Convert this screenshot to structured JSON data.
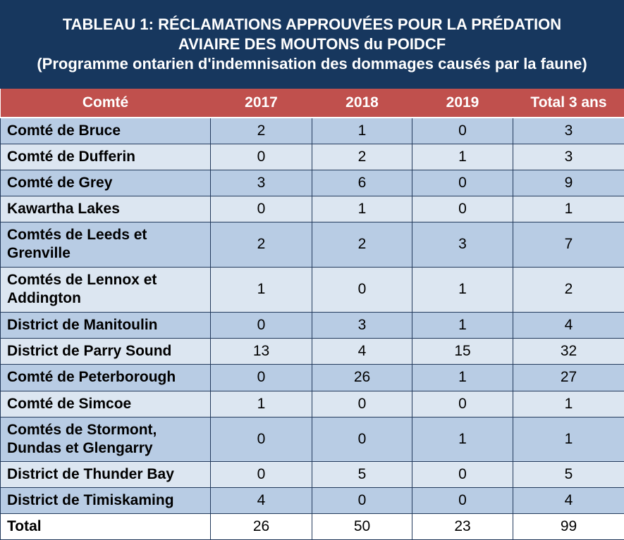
{
  "title": {
    "line1": "TABLEAU 1: RÉCLAMATIONS APPROUVÉES POUR LA PRÉDATION",
    "line2": "AVIAIRE DES MOUTONS du POIDCF",
    "line3": "(Programme ontarien d'indemnisation des dommages causés par la faune)"
  },
  "headers": [
    "Comté",
    "2017",
    "2018",
    "2019",
    "Total 3 ans"
  ],
  "rows": [
    {
      "name": "Comté de Bruce",
      "v2017": "2",
      "v2018": "1",
      "v2019": "0",
      "total": "3"
    },
    {
      "name": "Comté de Dufferin",
      "v2017": "0",
      "v2018": "2",
      "v2019": "1",
      "total": "3"
    },
    {
      "name": "Comté de Grey",
      "v2017": "3",
      "v2018": "6",
      "v2019": "0",
      "total": "9"
    },
    {
      "name": "Kawartha Lakes",
      "v2017": "0",
      "v2018": "1",
      "v2019": "0",
      "total": "1"
    },
    {
      "name": "Comtés de Leeds et Grenville",
      "v2017": "2",
      "v2018": "2",
      "v2019": "3",
      "total": "7"
    },
    {
      "name": "Comtés de Lennox et Addington",
      "v2017": "1",
      "v2018": "0",
      "v2019": "1",
      "total": "2"
    },
    {
      "name": "District de Manitoulin",
      "v2017": "0",
      "v2018": "3",
      "v2019": "1",
      "total": "4"
    },
    {
      "name": "District de Parry Sound",
      "v2017": "13",
      "v2018": "4",
      "v2019": "15",
      "total": "32"
    },
    {
      "name": "Comté de Peterborough",
      "v2017": "0",
      "v2018": "26",
      "v2019": "1",
      "total": "27"
    },
    {
      "name": "Comté de Simcoe",
      "v2017": "1",
      "v2018": "0",
      "v2019": "0",
      "total": "1"
    },
    {
      "name": "Comtés de Stormont, Dundas et Glengarry",
      "v2017": "0",
      "v2018": "0",
      "v2019": "1",
      "total": "1"
    },
    {
      "name": "District de Thunder Bay",
      "v2017": "0",
      "v2018": "5",
      "v2019": "0",
      "total": "5"
    },
    {
      "name": "District de Timiskaming",
      "v2017": "4",
      "v2018": "0",
      "v2019": "0",
      "total": "4"
    }
  ],
  "total_row": {
    "name": "Total",
    "v2017": "26",
    "v2018": "50",
    "v2019": "23",
    "total": "99"
  },
  "colors": {
    "title_bg": "#17375e",
    "header_bg": "#c0504d",
    "row_dark": "#b8cce4",
    "row_light": "#dce6f1",
    "border": "#233a5c"
  },
  "chart_data": {
    "type": "table",
    "title": "TABLEAU 1: RÉCLAMATIONS APPROUVÉES POUR LA PRÉDATION AVIAIRE DES MOUTONS du POIDCF (Programme ontarien d'indemnisation des dommages causés par la faune)",
    "columns": [
      "Comté",
      "2017",
      "2018",
      "2019",
      "Total 3 ans"
    ],
    "rows": [
      [
        "Comté de Bruce",
        2,
        1,
        0,
        3
      ],
      [
        "Comté de Dufferin",
        0,
        2,
        1,
        3
      ],
      [
        "Comté de Grey",
        3,
        6,
        0,
        9
      ],
      [
        "Kawartha Lakes",
        0,
        1,
        0,
        1
      ],
      [
        "Comtés de Leeds et Grenville",
        2,
        2,
        3,
        7
      ],
      [
        "Comtés de Lennox et Addington",
        1,
        0,
        1,
        2
      ],
      [
        "District de Manitoulin",
        0,
        3,
        1,
        4
      ],
      [
        "District de Parry Sound",
        13,
        4,
        15,
        32
      ],
      [
        "Comté de Peterborough",
        0,
        26,
        1,
        27
      ],
      [
        "Comté de Simcoe",
        1,
        0,
        0,
        1
      ],
      [
        "Comtés de Stormont, Dundas et Glengarry",
        0,
        0,
        1,
        1
      ],
      [
        "District de Thunder Bay",
        0,
        5,
        0,
        5
      ],
      [
        "District de Timiskaming",
        4,
        0,
        0,
        4
      ],
      [
        "Total",
        26,
        50,
        23,
        99
      ]
    ]
  }
}
